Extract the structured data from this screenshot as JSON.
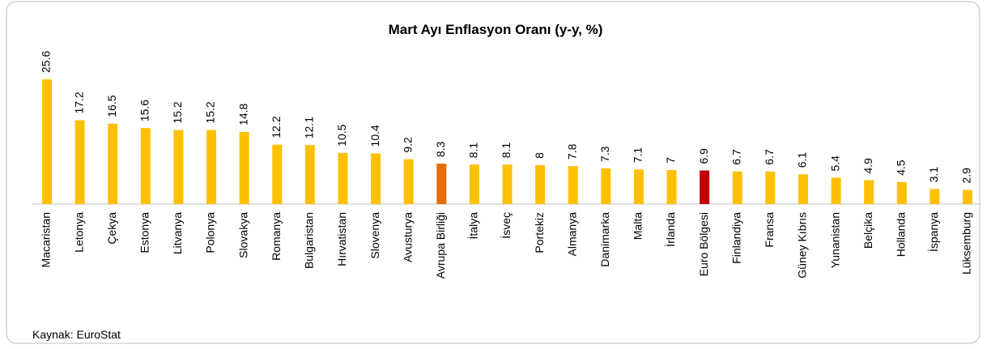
{
  "chart_data": {
    "type": "bar",
    "title": "Mart Ayı Enflasyon Oranı (y-y, %)",
    "categories": [
      "Macaristan",
      "Letonya",
      "Çekya",
      "Estonya",
      "Litvanya",
      "Polonya",
      "Slovakya",
      "Romanya",
      "Bulgaristan",
      "Hırvatistan",
      "Slovenya",
      "Avusturya",
      "Avrupa Birliği",
      "İtalya",
      "İsveç",
      "Portekiz",
      "Almanya",
      "Danimarka",
      "Malta",
      "İrlanda",
      "Euro Bölgesi",
      "Finlandiya",
      "Fransa",
      "Güney Kıbrıs",
      "Yunanistan",
      "Belçika",
      "Hollanda",
      "İspanya",
      "Lüksemburg"
    ],
    "values": [
      25.6,
      17.2,
      16.5,
      15.6,
      15.2,
      15.2,
      14.8,
      12.2,
      12.1,
      10.5,
      10.4,
      9.2,
      8.3,
      8.1,
      8.1,
      8,
      7.8,
      7.3,
      7.1,
      7,
      6.9,
      6.7,
      6.7,
      6.1,
      5.4,
      4.9,
      4.5,
      3.1,
      2.9
    ],
    "colors": [
      "#FFC000",
      "#FFC000",
      "#FFC000",
      "#FFC000",
      "#FFC000",
      "#FFC000",
      "#FFC000",
      "#FFC000",
      "#FFC000",
      "#FFC000",
      "#FFC000",
      "#FFC000",
      "#E46C0A",
      "#FFC000",
      "#FFC000",
      "#FFC000",
      "#FFC000",
      "#FFC000",
      "#FFC000",
      "#FFC000",
      "#C00000",
      "#FFC000",
      "#FFC000",
      "#FFC000",
      "#FFC000",
      "#FFC000",
      "#FFC000",
      "#FFC000",
      "#FFC000"
    ],
    "source": "Kaynak: EuroStat"
  }
}
